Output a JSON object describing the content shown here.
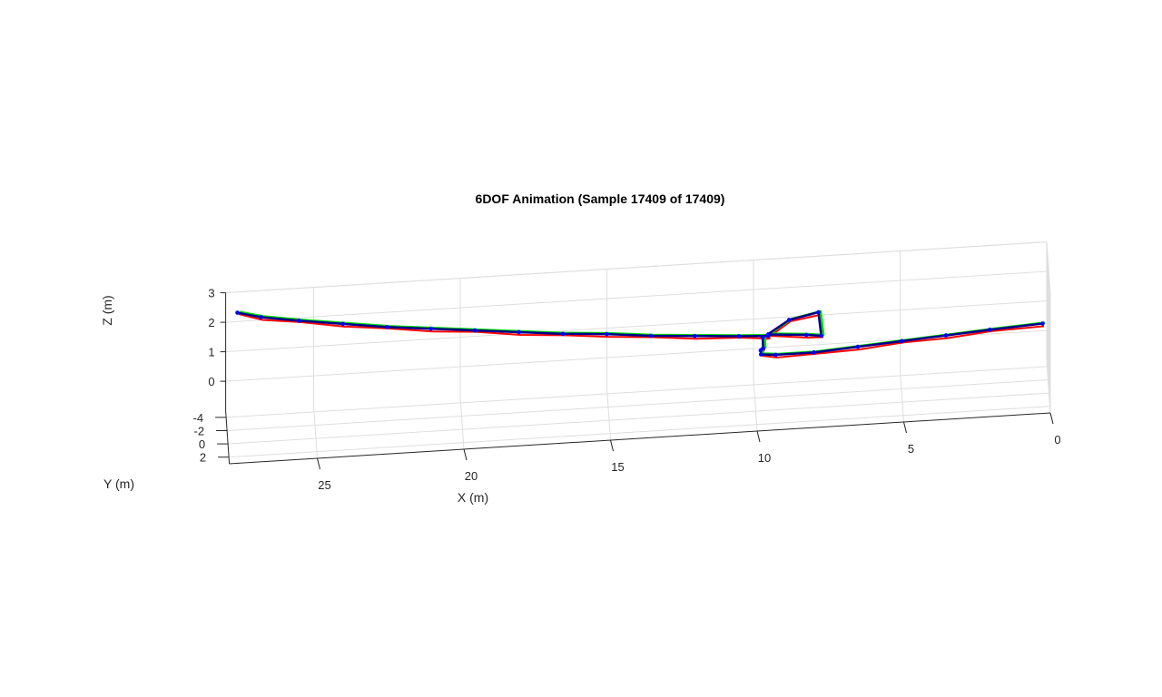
{
  "chart_data": {
    "type": "line",
    "title": "6DOF Animation (Sample 17409 of 17409)",
    "xlabel": "X (m)",
    "ylabel": "Y (m)",
    "zlabel": "Z (m)",
    "xlim": [
      0,
      28
    ],
    "ylim": [
      -5,
      3
    ],
    "zlim": [
      -1,
      3
    ],
    "x_ticks": [
      "0",
      "5",
      "10",
      "15",
      "20",
      "25"
    ],
    "y_ticks": [
      "-4",
      "-2",
      "0",
      "2"
    ],
    "z_ticks": [
      "0",
      "1",
      "2",
      "3"
    ],
    "grid": true,
    "series": [
      {
        "x": [
          27.6,
          26.8,
          25.5,
          24,
          22.5,
          21,
          19.5,
          18,
          16.5,
          15,
          13.5,
          12,
          10.5,
          9.5,
          9.5,
          8.2,
          7.7,
          7.8,
          8.8,
          9.7,
          9.7,
          9.8,
          9.8,
          9.3,
          8,
          6.5,
          5,
          3.5,
          2,
          0.2
        ],
        "y": [
          -5,
          -5,
          -5,
          -5,
          -5,
          -5,
          -5,
          -5,
          -5,
          -5,
          -5,
          -5,
          -5,
          -5,
          -5,
          -4.8,
          -4.3,
          -4.1,
          -4.1,
          -4.1,
          -3.2,
          -2,
          -1.4,
          -1.2,
          -1.2,
          -1.2,
          -1.2,
          -1.2,
          -1.2,
          -1.2
        ],
        "z": [
          2.3,
          2.1,
          1.9,
          1.7,
          1.5,
          1.35,
          1.2,
          1.05,
          0.9,
          0.8,
          0.65,
          0.55,
          0.45,
          0.4,
          0.45,
          0.4,
          0.45,
          1.3,
          1.1,
          0.55,
          0.4,
          0.6,
          0.6,
          0.6,
          0.6,
          0.7,
          0.8,
          0.9,
          1.0,
          1.1
        ],
        "color": "#00008b",
        "line_width": 2.5
      },
      {
        "color": "#ff0000",
        "role": "x-body-axis"
      },
      {
        "color": "#00e000",
        "role": "y-body-axis"
      },
      {
        "color": "#0000ff",
        "role": "z-body-axis"
      }
    ]
  }
}
